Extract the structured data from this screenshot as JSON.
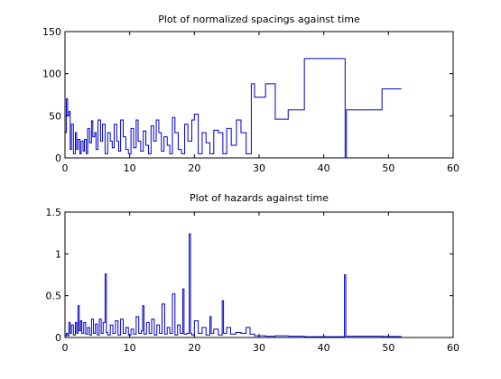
{
  "chart_data": [
    {
      "type": "line",
      "step": true,
      "title": "Plot of normalized spacings against time",
      "xlabel": "",
      "ylabel": "",
      "xlim": [
        0,
        60
      ],
      "ylim": [
        0,
        150
      ],
      "xticks": [
        0,
        10,
        20,
        30,
        40,
        50,
        60
      ],
      "yticks": [
        0,
        50,
        100,
        150
      ],
      "color": "#0000cc",
      "series": [
        {
          "x": [
            0,
            0.2,
            0.4,
            0.6,
            0.8,
            1.0,
            1.3,
            1.6,
            1.8,
            2.0,
            2.3,
            2.5,
            2.8,
            3.0,
            3.3,
            3.5,
            3.8,
            4.1,
            4.3,
            4.6,
            4.8,
            5.1,
            5.5,
            5.8,
            6.2,
            6.6,
            7.0,
            7.3,
            7.6,
            8.0,
            8.3,
            8.6,
            9.0,
            9.4,
            9.8,
            10.2,
            10.6,
            11.0,
            11.3,
            11.7,
            12.1,
            12.5,
            12.9,
            13.3,
            13.7,
            14.1,
            14.5,
            14.9,
            15.3,
            15.8,
            16.2,
            16.6,
            17.0,
            17.5,
            18.0,
            18.5,
            19.0,
            19.6,
            20.0,
            20.6,
            21.2,
            21.8,
            22.4,
            23.0,
            23.7,
            24.4,
            25.0,
            25.7,
            26.5,
            27.2,
            28.0,
            28.8,
            29.3,
            31.0,
            32.5,
            34.5,
            37.0,
            40.0,
            43.3,
            43.5,
            46.0,
            49.0,
            52.0
          ],
          "y": [
            30,
            70,
            50,
            55,
            10,
            40,
            5,
            30,
            10,
            22,
            5,
            20,
            8,
            22,
            5,
            35,
            18,
            44,
            25,
            30,
            10,
            45,
            20,
            40,
            5,
            30,
            20,
            12,
            40,
            20,
            8,
            45,
            25,
            10,
            5,
            35,
            12,
            45,
            20,
            8,
            32,
            15,
            5,
            38,
            20,
            45,
            30,
            8,
            25,
            15,
            5,
            48,
            30,
            10,
            5,
            40,
            20,
            45,
            52,
            5,
            30,
            18,
            5,
            33,
            30,
            5,
            35,
            15,
            45,
            30,
            5,
            88,
            72,
            88,
            46,
            57,
            118,
            118,
            0,
            57,
            57,
            82,
            82
          ]
        }
      ]
    },
    {
      "type": "line",
      "step": true,
      "title": "Plot of hazards against time",
      "xlabel": "",
      "ylabel": "",
      "xlim": [
        0,
        60
      ],
      "ylim": [
        0,
        1.5
      ],
      "xticks": [
        0,
        10,
        20,
        30,
        40,
        50,
        60
      ],
      "yticks": [
        0,
        0.5,
        1,
        1.5
      ],
      "color": "#0000cc",
      "series": [
        {
          "x": [
            0,
            0.2,
            0.4,
            0.6,
            0.8,
            1.0,
            1.3,
            1.6,
            1.8,
            2.0,
            2.2,
            2.4,
            2.6,
            2.9,
            3.2,
            3.5,
            3.8,
            4.1,
            4.4,
            4.7,
            5.0,
            5.3,
            5.6,
            5.9,
            6.2,
            6.4,
            6.6,
            7.0,
            7.4,
            7.8,
            8.2,
            8.6,
            9.0,
            9.4,
            9.8,
            10.2,
            10.6,
            11.0,
            11.4,
            11.8,
            12.0,
            12.2,
            12.6,
            13.0,
            13.4,
            13.8,
            14.2,
            14.6,
            15.0,
            15.4,
            15.8,
            16.2,
            16.6,
            17.0,
            17.4,
            17.8,
            18.2,
            18.4,
            18.8,
            19.2,
            19.4,
            19.6,
            20.0,
            20.6,
            21.2,
            21.8,
            22.4,
            22.6,
            23.0,
            23.7,
            24.3,
            24.5,
            25.0,
            25.6,
            26.4,
            27.2,
            28.0,
            28.6,
            29.3,
            31.0,
            32.5,
            34.5,
            37.0,
            40.0,
            43.2,
            43.4,
            46.0,
            49.0,
            52.0
          ],
          "y": [
            0.02,
            0.05,
            0.02,
            0.18,
            0.05,
            0.15,
            0.03,
            0.18,
            0.05,
            0.38,
            0.08,
            0.2,
            0.05,
            0.18,
            0.04,
            0.12,
            0.03,
            0.22,
            0.05,
            0.16,
            0.03,
            0.22,
            0.05,
            0.18,
            0.76,
            0.06,
            0.03,
            0.15,
            0.05,
            0.2,
            0.03,
            0.22,
            0.05,
            0.12,
            0.03,
            0.1,
            0.04,
            0.25,
            0.05,
            0.08,
            0.38,
            0.04,
            0.18,
            0.05,
            0.22,
            0.03,
            0.15,
            0.05,
            0.4,
            0.04,
            0.12,
            0.05,
            0.52,
            0.03,
            0.15,
            0.05,
            0.58,
            0.04,
            0.05,
            1.24,
            0.05,
            0.03,
            0.2,
            0.05,
            0.12,
            0.03,
            0.25,
            0.05,
            0.1,
            0.03,
            0.44,
            0.05,
            0.12,
            0.04,
            0.06,
            0.05,
            0.12,
            0.04,
            0.02,
            0.015,
            0.02,
            0.015,
            0.01,
            0.01,
            0.75,
            0.015,
            0.015,
            0.012,
            0.012
          ]
        }
      ]
    }
  ]
}
